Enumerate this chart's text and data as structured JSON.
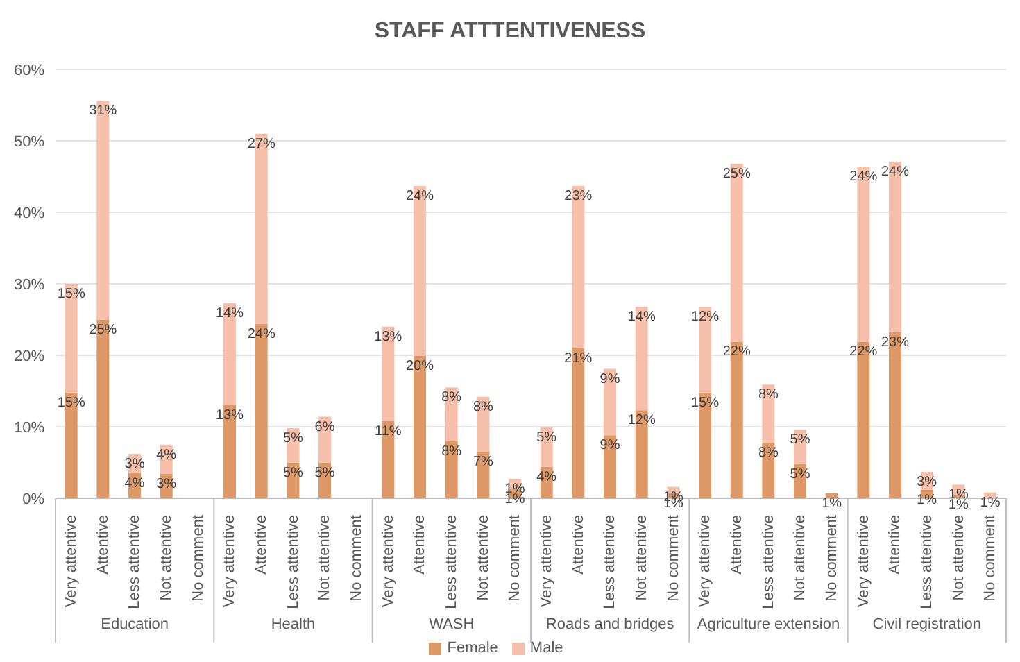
{
  "chart_data": {
    "type": "bar",
    "title": "STAFF ATTTENTIVENESS",
    "stacked": true,
    "grid": "y",
    "legend": "bottom",
    "categories": [
      "Very attentive",
      "Attentive",
      "Less attentive",
      "Not attentive",
      "No comment",
      "Very attentive",
      "Attentive",
      "Less attentive",
      "Not attentive",
      "No comment",
      "Very attentive",
      "Attentive",
      "Less attentive",
      "Not attentive",
      "No comment",
      "Very attentive",
      "Attentive",
      "Less attentive",
      "Not attentive",
      "No comment",
      "Very attentive",
      "Attentive",
      "Less attentive",
      "Not attentive",
      "No comment",
      "Very attentive",
      "Attentive",
      "Less attentive",
      "Not attentive",
      "No comment"
    ],
    "annotations": [
      "Education",
      "Health",
      "WASH",
      "Roads and bridges",
      "Agriculture extension",
      "Civil registration"
    ],
    "ylim": [
      0,
      60
    ],
    "yticks": [
      {
        "value": 0,
        "label": "0%"
      },
      {
        "value": 10,
        "label": "10%"
      },
      {
        "value": 20,
        "label": "20%"
      },
      {
        "value": 30,
        "label": "30%"
      },
      {
        "value": 40,
        "label": "40%"
      },
      {
        "value": 50,
        "label": "50%"
      },
      {
        "value": 60,
        "label": "60%"
      }
    ],
    "series": [
      {
        "name": "Female",
        "color": "#dd9865",
        "values": [
          14.8,
          25,
          3.5,
          3.4,
          0,
          13,
          24.4,
          5,
          5,
          0,
          10.8,
          19.9,
          8,
          6.5,
          1.3,
          4.4,
          21,
          8.8,
          12.3,
          0.7,
          14.8,
          21.9,
          7.8,
          4.8,
          0.7,
          21.9,
          23.2,
          1.2,
          0.5,
          0
        ],
        "value_labels": [
          "15%",
          "25%",
          "4%",
          "3%",
          null,
          "13%",
          "24%",
          "5%",
          "5%",
          null,
          "11%",
          "20%",
          "8%",
          "7%",
          "1%",
          "4%",
          "21%",
          "9%",
          "12%",
          "1%",
          "15%",
          "22%",
          "8%",
          "5%",
          "1%",
          "22%",
          "23%",
          "1%",
          "1%",
          null
        ]
      },
      {
        "name": "Male",
        "color": "#f5bfaa",
        "values": [
          15.2,
          30.6,
          2.7,
          4.1,
          0,
          14.3,
          26.6,
          4.8,
          6.4,
          0,
          13.2,
          23.8,
          7.5,
          7.7,
          1.4,
          5.5,
          22.7,
          9.3,
          14.5,
          0.9,
          12,
          24.9,
          8.1,
          4.8,
          0,
          24.5,
          23.9,
          2.5,
          1.4,
          0.8
        ],
        "value_labels": [
          "15%",
          "31%",
          "3%",
          "4%",
          null,
          "14%",
          "27%",
          "5%",
          "6%",
          null,
          "13%",
          "24%",
          "8%",
          "8%",
          "1%",
          "5%",
          "23%",
          "9%",
          "14%",
          "1%",
          "12%",
          "25%",
          "8%",
          "5%",
          null,
          "24%",
          "24%",
          "3%",
          "1%",
          "1%"
        ]
      }
    ]
  }
}
